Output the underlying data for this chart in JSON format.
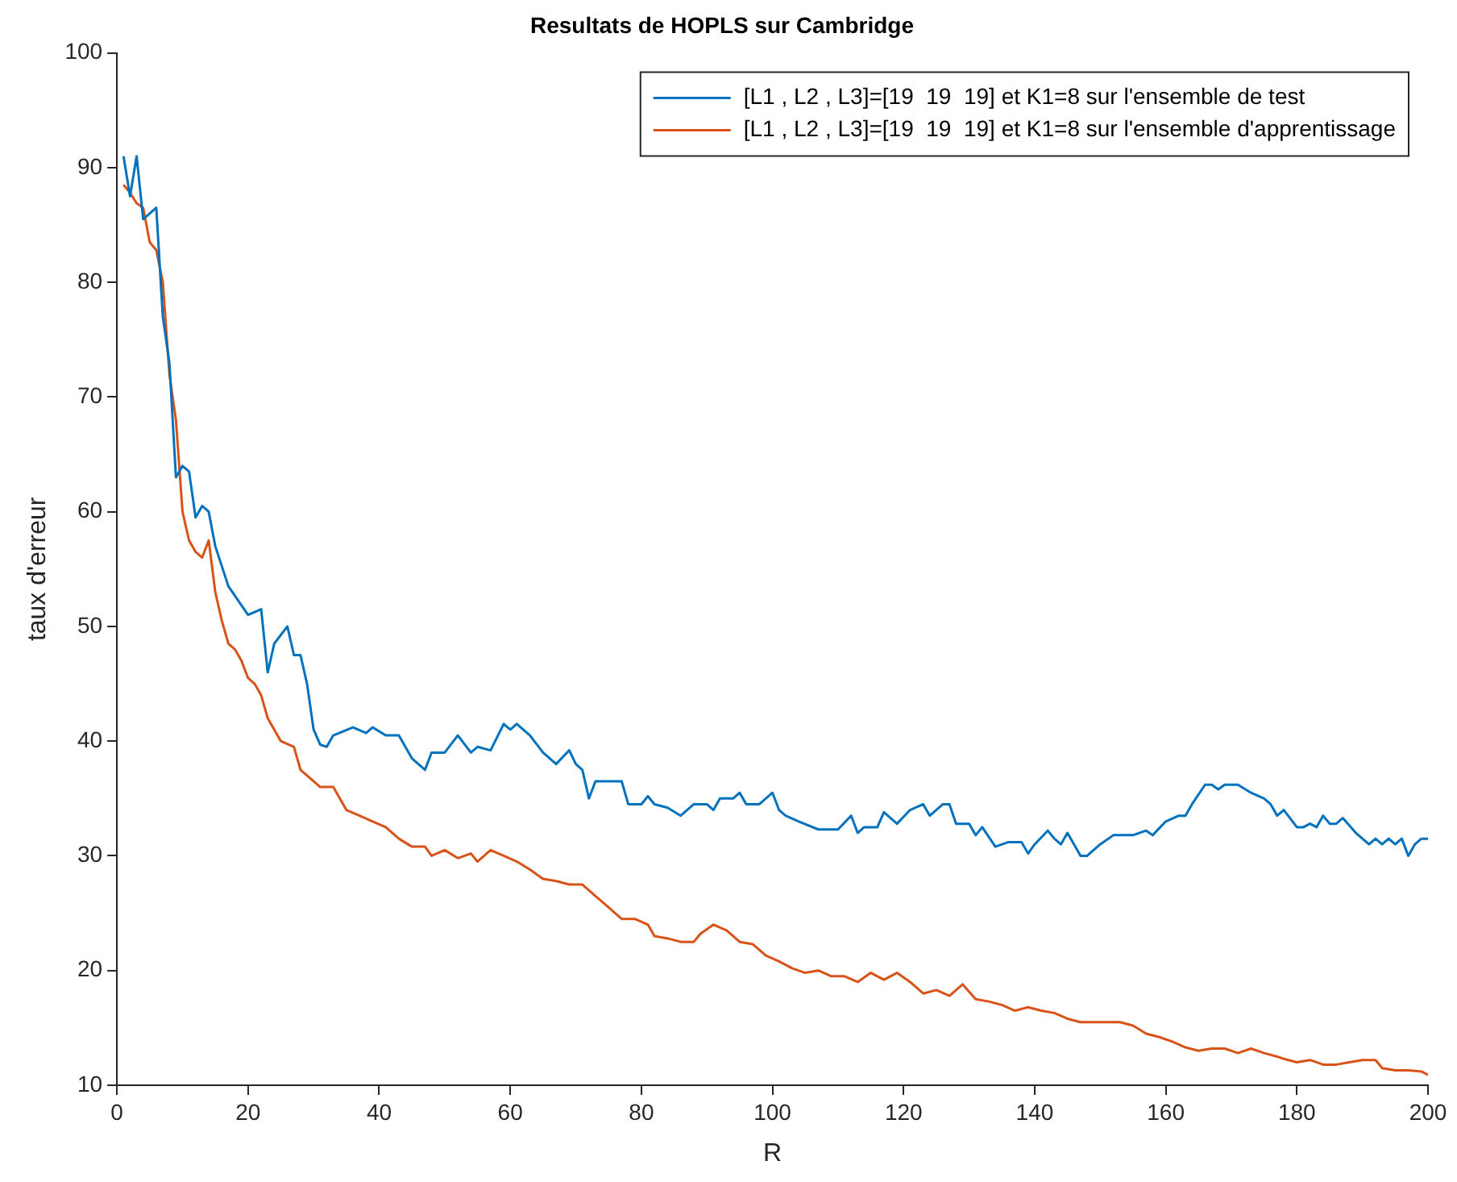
{
  "chart_data": {
    "type": "line",
    "title": "Resultats de HOPLS sur Cambridge",
    "xlabel": "R",
    "ylabel": "taux d'erreur",
    "xlim": [
      0,
      200
    ],
    "xticks": [
      0,
      20,
      40,
      60,
      80,
      100,
      120,
      140,
      160,
      180,
      200
    ],
    "ylim": [
      10,
      100
    ],
    "yticks": [
      10,
      20,
      30,
      40,
      50,
      60,
      70,
      80,
      90,
      100
    ],
    "grid": false,
    "legend": "top right",
    "marker": "none",
    "line_style": "solid",
    "series": [
      {
        "name": "[L1 , L2 , L3]=[19  19  19] et K1=8 sur l'ensemble de test",
        "color": "#0072bd",
        "x": [
          1,
          2,
          3,
          4,
          6,
          7,
          8,
          9,
          10,
          11,
          12,
          13,
          14,
          15,
          17,
          20,
          22,
          23,
          24,
          26,
          27,
          28,
          29,
          30,
          31,
          32,
          33,
          36,
          38,
          39,
          41,
          43,
          45,
          47,
          48,
          50,
          52,
          54,
          55,
          57,
          59,
          60,
          61,
          63,
          65,
          67,
          69,
          70,
          71,
          72,
          73,
          75,
          77,
          78,
          80,
          81,
          82,
          84,
          86,
          88,
          90,
          91,
          92,
          94,
          95,
          96,
          98,
          100,
          101,
          102,
          104,
          107,
          110,
          112,
          113,
          114,
          116,
          117,
          119,
          121,
          123,
          124,
          126,
          127,
          128,
          130,
          131,
          132,
          134,
          136,
          138,
          139,
          140,
          142,
          143,
          144,
          145,
          147,
          148,
          150,
          152,
          155,
          157,
          158,
          160,
          162,
          163,
          164,
          166,
          167,
          168,
          169,
          171,
          173,
          175,
          176,
          177,
          178,
          180,
          181,
          182,
          183,
          184,
          185,
          186,
          187,
          189,
          190,
          191,
          192,
          193,
          194,
          195,
          196,
          197,
          198,
          199,
          200
        ],
        "values": [
          91,
          87.5,
          91,
          85.5,
          86.5,
          77,
          73,
          63,
          64,
          63.5,
          59.5,
          60.5,
          60,
          57,
          53.5,
          51,
          51.5,
          46,
          48.5,
          50,
          47.5,
          47.5,
          45,
          41,
          39.7,
          39.5,
          40.5,
          41.2,
          40.7,
          41.2,
          40.5,
          40.5,
          38.5,
          37.5,
          39,
          39,
          40.5,
          39,
          39.5,
          39.2,
          41.5,
          41,
          41.5,
          40.5,
          39,
          38,
          39.2,
          38,
          37.5,
          35,
          36.5,
          36.5,
          36.5,
          34.5,
          34.5,
          35.2,
          34.5,
          34.2,
          33.5,
          34.5,
          34.5,
          34,
          35,
          35,
          35.5,
          34.5,
          34.5,
          35.5,
          34,
          33.5,
          33,
          32.3,
          32.3,
          33.5,
          32,
          32.5,
          32.5,
          33.8,
          32.8,
          34,
          34.5,
          33.5,
          34.5,
          34.5,
          32.8,
          32.8,
          31.8,
          32.5,
          30.8,
          31.2,
          31.2,
          30.2,
          31,
          32.2,
          31.5,
          31,
          32,
          30,
          30,
          31,
          31.8,
          31.8,
          32.2,
          31.8,
          33,
          33.5,
          33.5,
          34.5,
          36.2,
          36.2,
          35.8,
          36.2,
          36.2,
          35.5,
          35,
          34.5,
          33.5,
          34,
          32.5,
          32.5,
          32.8,
          32.5,
          33.5,
          32.8,
          32.8,
          33.3,
          32,
          31.5,
          31,
          31.5,
          31,
          31.5,
          31,
          31.5,
          30,
          31,
          31.5,
          31.5
        ]
      },
      {
        "name": "[L1 , L2 , L3]=[19  19  19] et K1=8 sur l'ensemble d'apprentissage",
        "color": "#d95319",
        "x": [
          1,
          2,
          3,
          4,
          5,
          6,
          7,
          8,
          9,
          10,
          11,
          12,
          13,
          14,
          15,
          16,
          17,
          18,
          19,
          20,
          21,
          22,
          23,
          24,
          25,
          27,
          28,
          30,
          31,
          33,
          35,
          37,
          39,
          41,
          43,
          45,
          47,
          48,
          50,
          52,
          54,
          55,
          57,
          59,
          61,
          63,
          65,
          67,
          69,
          71,
          73,
          75,
          77,
          79,
          81,
          82,
          84,
          86,
          88,
          89,
          91,
          93,
          95,
          97,
          99,
          101,
          103,
          105,
          107,
          109,
          111,
          113,
          115,
          117,
          119,
          121,
          123,
          125,
          127,
          129,
          131,
          133,
          135,
          137,
          139,
          141,
          143,
          145,
          147,
          150,
          153,
          155,
          157,
          159,
          161,
          163,
          165,
          167,
          169,
          171,
          173,
          175,
          177,
          178,
          180,
          182,
          184,
          186,
          188,
          190,
          192,
          193,
          195,
          197,
          199,
          200
        ],
        "values": [
          88.5,
          87.8,
          86.9,
          86.5,
          83.5,
          82.8,
          80,
          72,
          68,
          60,
          57.5,
          56.5,
          56,
          57.5,
          53,
          50.5,
          48.5,
          48,
          47,
          45.5,
          45,
          44,
          42,
          41,
          40,
          39.5,
          37.5,
          36.5,
          36,
          36,
          34,
          33.5,
          33,
          32.5,
          31.5,
          30.8,
          30.8,
          30,
          30.5,
          29.8,
          30.2,
          29.5,
          30.5,
          30,
          29.5,
          28.8,
          28,
          27.8,
          27.5,
          27.5,
          26.5,
          25.5,
          24.5,
          24.5,
          24,
          23,
          22.8,
          22.5,
          22.5,
          23.2,
          24,
          23.5,
          22.5,
          22.3,
          21.3,
          20.8,
          20.2,
          19.8,
          20,
          19.5,
          19.5,
          19,
          19.8,
          19.2,
          19.8,
          19,
          18,
          18.3,
          17.8,
          18.8,
          17.5,
          17.3,
          17,
          16.5,
          16.8,
          16.5,
          16.3,
          15.8,
          15.5,
          15.5,
          15.5,
          15.2,
          14.5,
          14.2,
          13.8,
          13.3,
          13,
          13.2,
          13.2,
          12.8,
          13.2,
          12.8,
          12.5,
          12.3,
          12,
          12.2,
          11.8,
          11.8,
          12,
          12.2,
          12.2,
          11.5,
          11.3,
          11.3,
          11.2,
          10.9
        ]
      }
    ]
  }
}
